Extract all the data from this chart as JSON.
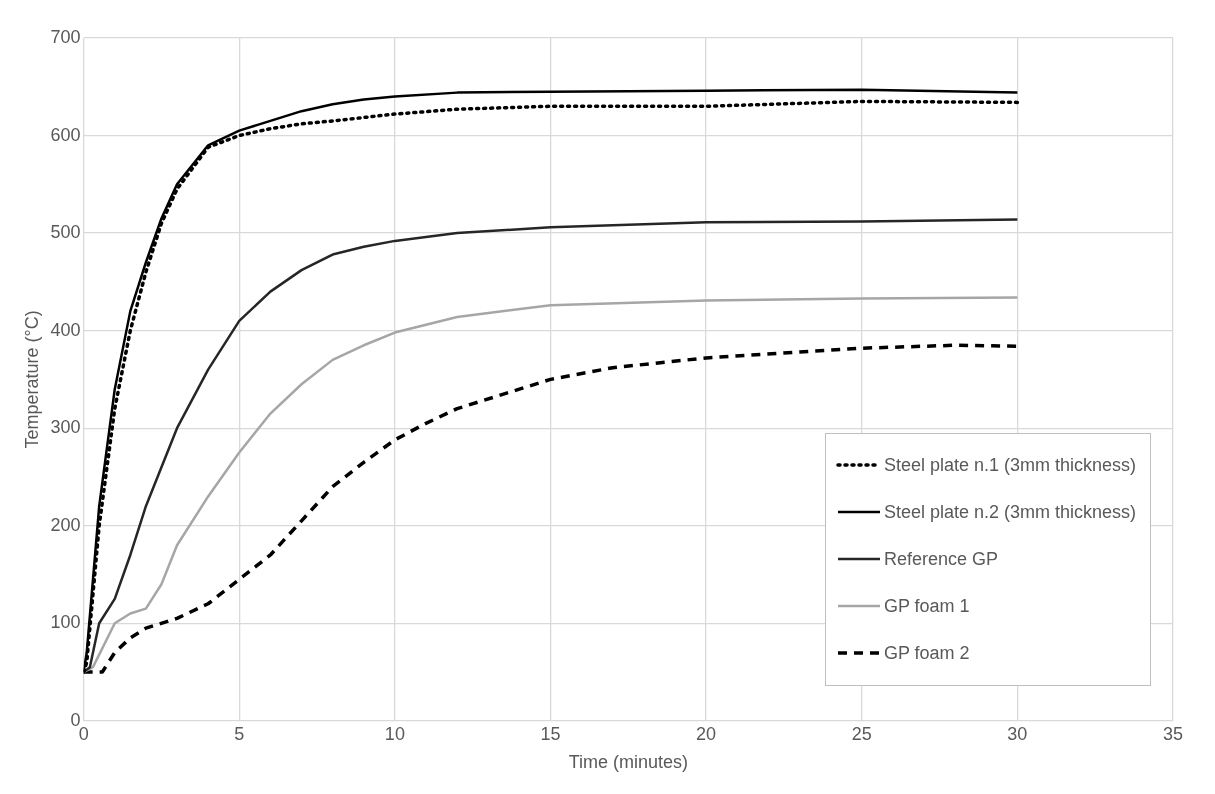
{
  "chart_data": {
    "type": "line",
    "xlabel": "Time (minutes)",
    "ylabel": "Temperature (°C)",
    "xlim": [
      0,
      35
    ],
    "xticks": [
      0,
      5,
      10,
      15,
      20,
      25,
      30,
      35
    ],
    "ylim": [
      0,
      700
    ],
    "yticks": [
      0,
      100,
      200,
      300,
      400,
      500,
      600,
      700
    ],
    "grid": true,
    "legend": "bottom right",
    "marker": "none",
    "series": [
      {
        "name": "Steel plate n.1 (3mm thickness)",
        "color": "#000000",
        "line_style": "dotted",
        "x": [
          0,
          0.1,
          0.5,
          1,
          1.5,
          2,
          2.5,
          3,
          4,
          5,
          6,
          7,
          8,
          10,
          12,
          15,
          20,
          25,
          30
        ],
        "values": [
          50,
          60,
          200,
          320,
          400,
          460,
          510,
          545,
          588,
          600,
          607,
          612,
          615,
          622,
          627,
          630,
          630,
          635,
          634
        ]
      },
      {
        "name": "Steel plate n.2 (3mm thickness)",
        "color": "#000000",
        "line_style": "solid",
        "x": [
          0,
          0.1,
          0.5,
          1,
          1.5,
          2,
          2.5,
          3,
          4,
          5,
          6,
          7,
          8,
          9,
          10,
          12,
          15,
          20,
          25,
          30
        ],
        "values": [
          50,
          70,
          220,
          340,
          420,
          470,
          515,
          550,
          590,
          605,
          615,
          625,
          632,
          637,
          640,
          644,
          645,
          646,
          647,
          644
        ]
      },
      {
        "name": "Reference GP",
        "color": "#262626",
        "line_style": "solid",
        "x": [
          0,
          0.2,
          0.5,
          1,
          1.5,
          2,
          3,
          4,
          5,
          6,
          7,
          8,
          9,
          10,
          12,
          15,
          20,
          25,
          30
        ],
        "values": [
          50,
          55,
          100,
          125,
          170,
          220,
          300,
          360,
          410,
          440,
          462,
          478,
          486,
          492,
          500,
          506,
          511,
          512,
          514
        ]
      },
      {
        "name": "GP foam 1",
        "color": "#a6a6a6",
        "line_style": "solid",
        "x": [
          0,
          0.3,
          1,
          1.5,
          2,
          2.5,
          3,
          4,
          5,
          6,
          7,
          8,
          9,
          10,
          12,
          15,
          20,
          25,
          30
        ],
        "values": [
          50,
          55,
          100,
          110,
          115,
          140,
          180,
          230,
          275,
          315,
          345,
          370,
          385,
          398,
          414,
          426,
          431,
          433,
          434
        ]
      },
      {
        "name": "GP foam 2",
        "color": "#000000",
        "line_style": "dashed",
        "x": [
          0,
          0.6,
          1,
          1.5,
          2,
          3,
          4,
          5,
          6,
          7,
          8,
          9,
          10,
          11,
          12,
          14,
          15,
          17,
          20,
          23,
          25,
          28,
          30
        ],
        "values": [
          50,
          50,
          70,
          85,
          95,
          105,
          120,
          145,
          170,
          205,
          240,
          265,
          288,
          305,
          320,
          340,
          350,
          362,
          372,
          378,
          382,
          385,
          384
        ]
      }
    ]
  }
}
